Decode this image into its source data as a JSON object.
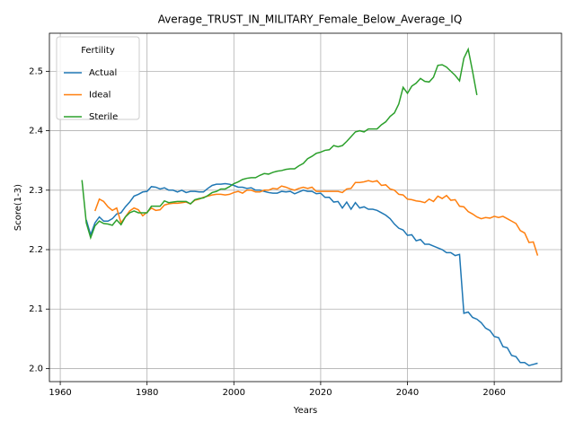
{
  "chart_data": {
    "type": "line",
    "title": "Average_TRUST_IN_MILITARY_Female_Below_Average_IQ",
    "xlabel": "Years",
    "ylabel": "Score(1-3)",
    "legend_title": "Fertility",
    "legend": "upper left",
    "grid": true,
    "xlim": [
      1957.5,
      2075.5
    ],
    "ylim": [
      1.978,
      2.564
    ],
    "xticks": [
      1960,
      1980,
      2000,
      2020,
      2040,
      2060
    ],
    "yticks": [
      {
        "value": 2,
        "label": "2.0"
      },
      2.1,
      2.2,
      2.3,
      2.4,
      2.5
    ],
    "x": [
      1965,
      1966,
      1967,
      1968,
      1969,
      1970,
      1971,
      1972,
      1973,
      1974,
      1975,
      1976,
      1977,
      1978,
      1979,
      1980,
      1981,
      1982,
      1983,
      1984,
      1985,
      1986,
      1987,
      1988,
      1989,
      1990,
      1991,
      1992,
      1993,
      1994,
      1995,
      1996,
      1997,
      1998,
      1999,
      2000,
      2001,
      2002,
      2003,
      2004,
      2005,
      2006,
      2007,
      2008,
      2009,
      2010,
      2011,
      2012,
      2013,
      2014,
      2015,
      2016,
      2017,
      2018,
      2019,
      2020,
      2021,
      2022,
      2023,
      2024,
      2025,
      2026,
      2027,
      2028,
      2029,
      2030,
      2031,
      2032,
      2033,
      2034,
      2035,
      2036,
      2037,
      2038,
      2039,
      2040,
      2041,
      2042,
      2043,
      2044,
      2045,
      2046,
      2047,
      2048,
      2049,
      2050,
      2051,
      2052,
      2053,
      2054,
      2055,
      2056,
      2057,
      2058,
      2059,
      2060,
      2061,
      2062,
      2063,
      2064,
      2065,
      2066,
      2067,
      2068,
      2069,
      2070
    ],
    "series": [
      {
        "name": "Actual",
        "color": "#1f77b4",
        "values": [
          null,
          2.25,
          2.225,
          2.245,
          2.255,
          2.248,
          2.248,
          2.252,
          2.26,
          2.262,
          2.272,
          2.28,
          2.29,
          2.293,
          2.297,
          2.298,
          2.306,
          2.305,
          2.302,
          2.304,
          2.3,
          2.3,
          2.297,
          2.3,
          2.296,
          2.298,
          2.298,
          2.297,
          2.297,
          2.303,
          2.308,
          2.31,
          2.31,
          2.311,
          2.31,
          2.308,
          2.305,
          2.305,
          2.303,
          2.304,
          2.3,
          2.3,
          2.298,
          2.296,
          2.295,
          2.295,
          2.298,
          2.297,
          2.298,
          2.294,
          2.297,
          2.3,
          2.298,
          2.298,
          2.294,
          2.295,
          2.288,
          2.288,
          2.28,
          2.281,
          2.27,
          2.28,
          2.268,
          2.279,
          2.27,
          2.272,
          2.268,
          2.268,
          2.266,
          2.262,
          2.258,
          2.252,
          2.243,
          2.236,
          2.233,
          2.224,
          2.225,
          2.215,
          2.217,
          2.209,
          2.209,
          2.206,
          2.203,
          2.2,
          2.195,
          2.195,
          2.19,
          2.192,
          2.093,
          2.095,
          2.086,
          2.083,
          2.077,
          2.068,
          2.064,
          2.054,
          2.052,
          2.037,
          2.035,
          2.022,
          2.02,
          2.01,
          2.01,
          2.005,
          2.007,
          2.009
        ]
      },
      {
        "name": "Ideal",
        "color": "#ff7f0e",
        "values": [
          null,
          null,
          null,
          2.265,
          2.285,
          2.281,
          2.272,
          2.266,
          2.27,
          2.245,
          2.255,
          2.265,
          2.27,
          2.267,
          2.257,
          2.263,
          2.27,
          2.266,
          2.267,
          2.275,
          2.277,
          2.278,
          2.278,
          2.279,
          2.28,
          2.277,
          2.283,
          2.285,
          2.288,
          2.29,
          2.292,
          2.293,
          2.293,
          2.292,
          2.293,
          2.296,
          2.298,
          2.295,
          2.3,
          2.3,
          2.297,
          2.297,
          2.3,
          2.3,
          2.303,
          2.302,
          2.307,
          2.305,
          2.302,
          2.3,
          2.303,
          2.305,
          2.303,
          2.305,
          2.298,
          2.298,
          2.298,
          2.298,
          2.298,
          2.298,
          2.296,
          2.302,
          2.303,
          2.313,
          2.313,
          2.314,
          2.316,
          2.314,
          2.316,
          2.308,
          2.309,
          2.302,
          2.3,
          2.293,
          2.292,
          2.285,
          2.284,
          2.282,
          2.281,
          2.279,
          2.285,
          2.281,
          2.29,
          2.286,
          2.291,
          2.283,
          2.284,
          2.273,
          2.272,
          2.264,
          2.26,
          2.255,
          2.252,
          2.254,
          2.253,
          2.256,
          2.254,
          2.256,
          2.252,
          2.248,
          2.244,
          2.232,
          2.228,
          2.212,
          2.213,
          2.19
        ]
      },
      {
        "name": "Sterile",
        "color": "#2ca02c",
        "values": [
          2.317,
          2.245,
          2.22,
          2.24,
          2.248,
          2.244,
          2.243,
          2.241,
          2.25,
          2.242,
          2.255,
          2.262,
          2.265,
          2.262,
          2.262,
          2.262,
          2.273,
          2.273,
          2.273,
          2.282,
          2.279,
          2.28,
          2.281,
          2.281,
          2.281,
          2.277,
          2.284,
          2.286,
          2.287,
          2.291,
          2.296,
          2.298,
          2.302,
          2.302,
          2.306,
          2.311,
          2.314,
          2.318,
          2.32,
          2.321,
          2.321,
          2.325,
          2.328,
          2.327,
          2.33,
          2.332,
          2.333,
          2.335,
          2.336,
          2.336,
          2.341,
          2.345,
          2.353,
          2.357,
          2.362,
          2.364,
          2.367,
          2.368,
          2.375,
          2.373,
          2.375,
          2.382,
          2.39,
          2.398,
          2.4,
          2.398,
          2.403,
          2.403,
          2.403,
          2.41,
          2.415,
          2.424,
          2.43,
          2.445,
          2.473,
          2.463,
          2.475,
          2.48,
          2.488,
          2.483,
          2.482,
          2.49,
          2.51,
          2.511,
          2.507,
          2.5,
          2.493,
          2.484,
          2.522,
          2.537,
          2.5,
          2.46,
          null,
          null,
          null,
          null,
          null,
          null,
          null,
          null,
          null,
          null,
          null,
          null,
          null,
          null
        ]
      }
    ]
  }
}
